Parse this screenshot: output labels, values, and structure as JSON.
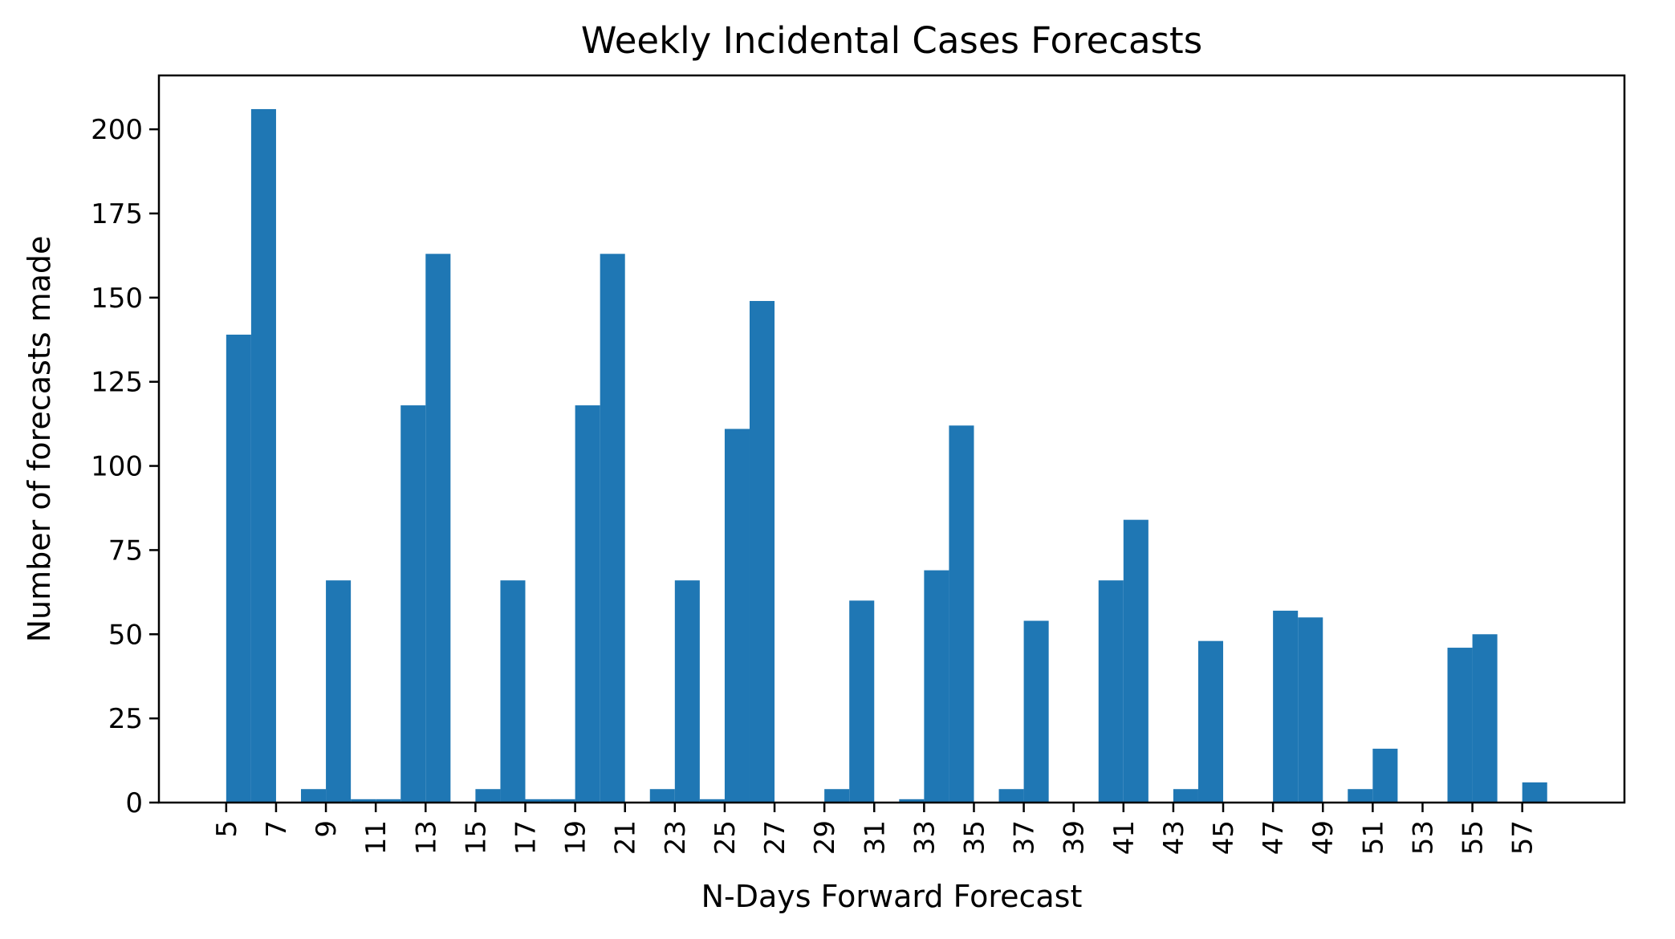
{
  "chart_data": {
    "type": "bar",
    "title": "Weekly Incidental Cases Forecasts",
    "xlabel": "N-Days Forward Forecast",
    "ylabel": "Number of forecasts made",
    "bar_color": "#1f77b4",
    "xlim": [
      2.3,
      61.1
    ],
    "ylim": [
      0,
      216
    ],
    "xticks": [
      "5",
      "7",
      "9",
      "11",
      "13",
      "15",
      "17",
      "19",
      "21",
      "23",
      "25",
      "27",
      "29",
      "31",
      "33",
      "35",
      "37",
      "39",
      "41",
      "43",
      "45",
      "47",
      "49",
      "51",
      "53",
      "55",
      "57"
    ],
    "yticks": [
      "0",
      "25",
      "50",
      "75",
      "100",
      "125",
      "150",
      "175",
      "200"
    ],
    "bar_width": 1,
    "x": [
      5,
      6,
      8,
      9,
      10,
      11,
      12,
      13,
      15,
      16,
      17,
      18,
      19,
      20,
      22,
      23,
      24,
      25,
      26,
      27,
      29,
      30,
      31,
      32,
      33,
      34,
      36,
      37,
      38,
      39,
      40,
      41,
      43,
      44,
      45,
      46,
      47,
      48,
      50,
      51,
      52,
      53,
      54,
      55,
      57
    ],
    "values": [
      139,
      206,
      4,
      66,
      1,
      1,
      118,
      163,
      4,
      66,
      1,
      1,
      118,
      163,
      4,
      66,
      1,
      111,
      149,
      0,
      4,
      60,
      0,
      1,
      69,
      112,
      4,
      54,
      0,
      0,
      66,
      84,
      4,
      48,
      0,
      0,
      57,
      55,
      4,
      16,
      0,
      0,
      46,
      50,
      6
    ],
    "grid": false,
    "legend": "none"
  }
}
